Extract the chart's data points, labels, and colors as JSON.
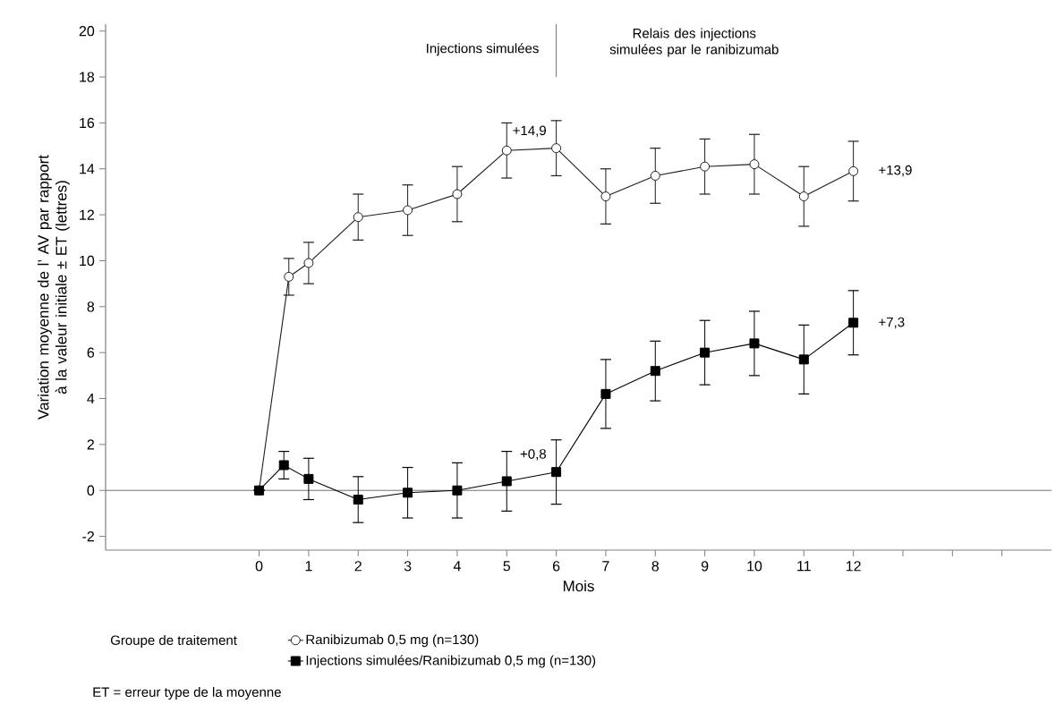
{
  "chart_data": {
    "type": "line",
    "xlabel": "Mois",
    "ylabel": "Variation moyenne de l’ AV par rapport à la valeur initiale ± ET (lettres)",
    "legend_title": "Groupe de traitement",
    "series": [
      {
        "name": "Ranibizumab 0,5 mg (n=130)",
        "color": "#1e1e1e",
        "marker": "circle",
        "x": [
          0,
          0.6,
          1,
          2,
          3,
          4,
          5,
          6,
          7,
          8,
          9,
          10,
          11,
          12
        ],
        "values": [
          0,
          9.3,
          9.9,
          11.9,
          12.2,
          12.9,
          14.8,
          14.9,
          12.8,
          13.7,
          14.1,
          14.2,
          12.8,
          13.9
        ],
        "errors": [
          null,
          0.8,
          0.9,
          1.0,
          1.1,
          1.2,
          1.2,
          1.2,
          1.2,
          1.2,
          1.2,
          1.3,
          1.3,
          1.3
        ]
      },
      {
        "name": "Injections simulées/Ranibizumab 0,5 mg (n=130)",
        "color": "#000000",
        "marker": "square",
        "x": [
          0,
          0.5,
          1,
          2,
          3,
          4,
          5,
          6,
          7,
          8,
          9,
          10,
          11,
          12
        ],
        "values": [
          0,
          1.1,
          0.5,
          -0.4,
          -0.1,
          0,
          0.4,
          0.8,
          4.2,
          5.2,
          6.0,
          6.4,
          5.7,
          7.3
        ],
        "errors": [
          null,
          0.6,
          0.9,
          1.0,
          1.1,
          1.2,
          1.3,
          1.4,
          1.5,
          1.3,
          1.4,
          1.4,
          1.5,
          1.4
        ]
      }
    ],
    "xlim": [
      -3.1,
      16
    ],
    "xticks": [
      0,
      1,
      2,
      3,
      4,
      5,
      6,
      7,
      8,
      9,
      10,
      11,
      12,
      {
        "value": 13,
        "label": null
      },
      {
        "value": 14,
        "label": null
      },
      {
        "value": 15,
        "label": null
      }
    ],
    "ylim": [
      -2.6,
      20.3
    ],
    "yticks": [
      -2,
      0,
      2,
      4,
      6,
      8,
      10,
      12,
      14,
      16,
      18,
      20
    ],
    "ref_lines": [
      {
        "axis": "y",
        "value": 0,
        "color": "#707070"
      },
      {
        "axis": "x",
        "value": 6,
        "color": "#707070"
      }
    ],
    "annotations": [
      "Injections simulées",
      "Relais des injections simulées par le ranibizumab",
      "+14,9",
      "+0,8",
      "+13,9",
      "+7,3",
      "ET = erreur type de la moyenne"
    ],
    "legend": "bottom",
    "grid": false
  }
}
